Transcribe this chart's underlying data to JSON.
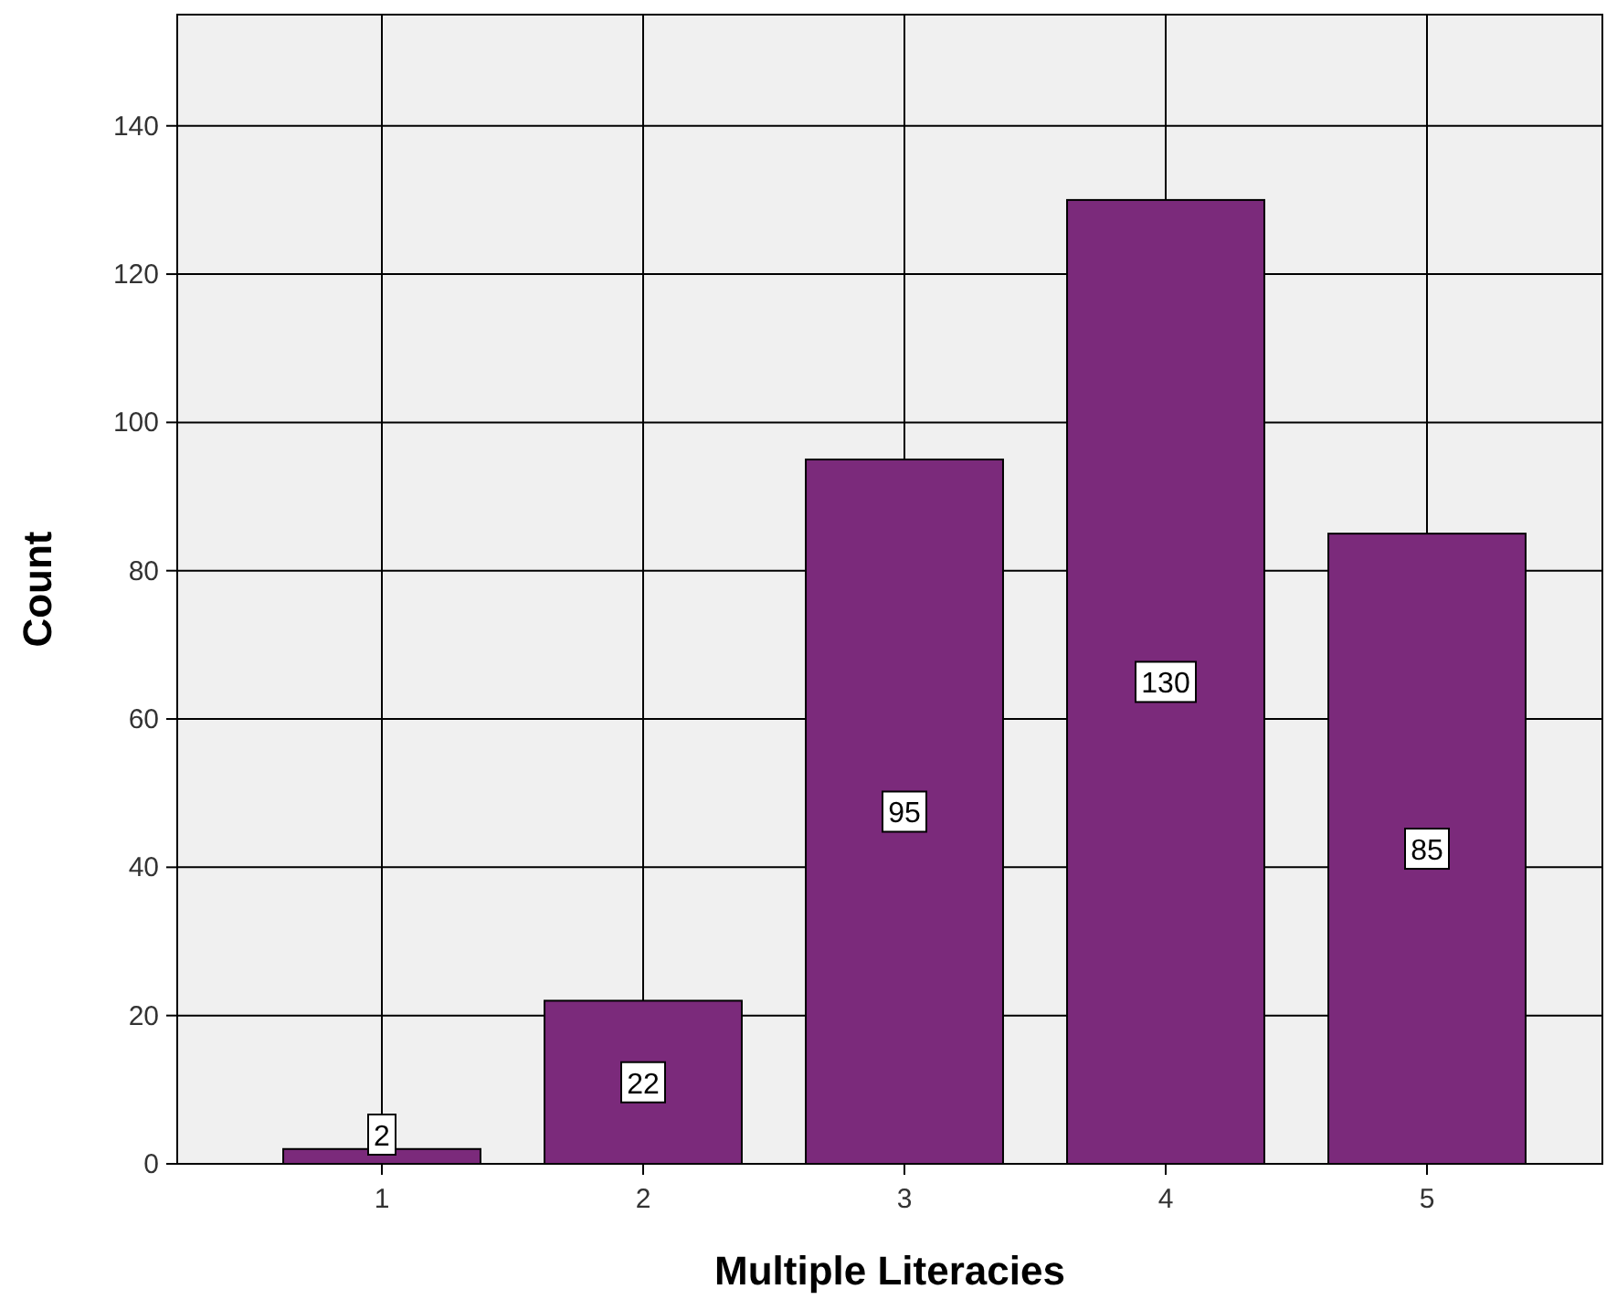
{
  "chart_data": {
    "type": "bar",
    "xlabel": "Multiple Literacies",
    "ylabel": "Count",
    "categories": [
      "1",
      "2",
      "3",
      "4",
      "5"
    ],
    "values": [
      2,
      22,
      95,
      130,
      85
    ],
    "color": "#7b2a7b",
    "ylim": [
      0,
      155
    ],
    "yticks": [
      0,
      20,
      40,
      60,
      80,
      100,
      120,
      140
    ],
    "grid": true,
    "data_labels": true
  }
}
